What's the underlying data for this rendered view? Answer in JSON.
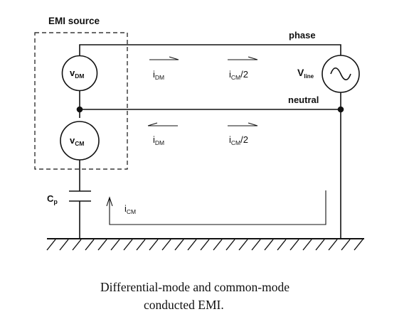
{
  "labels": {
    "emi_source": "EMI source",
    "phase": "phase",
    "neutral": "neutral",
    "v_dm_main": "v",
    "v_dm_sub": "DM",
    "v_cm_main": "v",
    "v_cm_sub": "CM",
    "v_line_main": "V",
    "v_line_sub": "line",
    "i_dm_top_main": "i",
    "i_dm_top_sub": "DM",
    "i_cm_top_main": "i",
    "i_cm_top_sub": "CM",
    "i_cm_top_suffix": "/2",
    "i_dm_bottom_main": "i",
    "i_dm_bottom_sub": "DM",
    "i_cm_bottom_main": "i",
    "i_cm_bottom_sub": "CM",
    "i_cm_bottom_suffix": "/2",
    "cp_main": "C",
    "cp_sub": "p",
    "i_cm_return_main": "i",
    "i_cm_return_sub": "CM"
  },
  "caption": {
    "line1": "Differential-mode and common-mode",
    "line2": "conducted EMI."
  }
}
